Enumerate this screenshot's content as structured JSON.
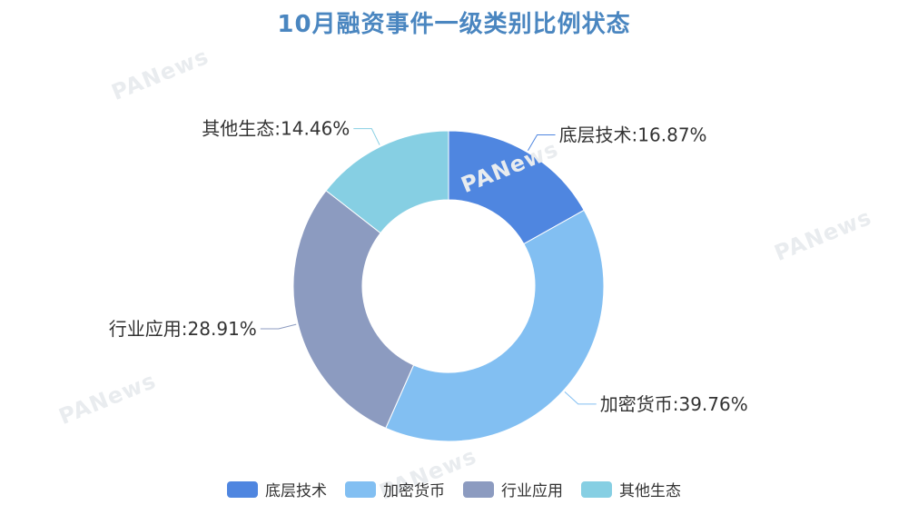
{
  "watermark": "PANews",
  "chart_data": {
    "type": "pie",
    "title": "10月融资事件一级类别比例状态",
    "donut": true,
    "legend_position": "bottom",
    "slices": [
      {
        "name": "底层技术",
        "value": 16.87,
        "label": "底层技术:16.87%",
        "color": "#4f86e0"
      },
      {
        "name": "加密货币",
        "value": 39.76,
        "label": "加密货币:39.76%",
        "color": "#82bff2"
      },
      {
        "name": "行业应用",
        "value": 28.91,
        "label": "行业应用:28.91%",
        "color": "#8c9bc0"
      },
      {
        "name": "其他生态",
        "value": 14.46,
        "label": "其他生态:14.46%",
        "color": "#86cfe3"
      }
    ]
  }
}
